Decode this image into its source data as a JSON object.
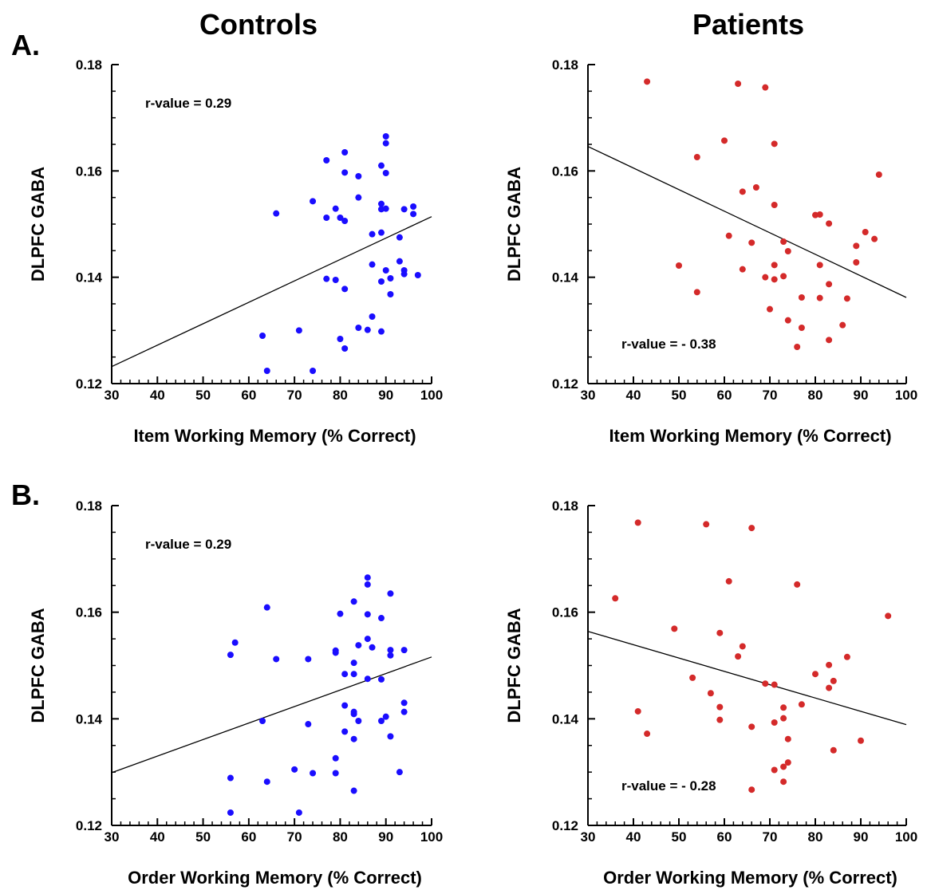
{
  "column_titles": [
    "Controls",
    "Patients"
  ],
  "panel_labels": [
    "A.",
    "B."
  ],
  "colors": {
    "controls": "#1a0dff",
    "patients": "#d42a2a",
    "fit_line": "#000000"
  },
  "chart_data": [
    {
      "type": "scatter",
      "group": "Controls",
      "panel": "A.",
      "xlabel": "Item Working Memory (% Correct)",
      "ylabel": "DLPFC GABA",
      "xlim": [
        30,
        100
      ],
      "ylim": [
        0.12,
        0.18
      ],
      "xticks": [
        30,
        40,
        50,
        60,
        70,
        80,
        90,
        100
      ],
      "yticks": [
        0.12,
        0.14,
        0.16,
        0.18
      ],
      "ytick_labels": [
        "0.12",
        "0.14",
        "0.16",
        "0.18"
      ],
      "annotation": "r-value = 0.29",
      "annotation_pos": "top-left",
      "fit_line": [
        [
          30,
          0.1232
        ],
        [
          100,
          0.1514
        ]
      ],
      "points": [
        [
          63,
          0.129
        ],
        [
          64,
          0.1224
        ],
        [
          66,
          0.152
        ],
        [
          71,
          0.13
        ],
        [
          74,
          0.1224
        ],
        [
          74,
          0.1543
        ],
        [
          77,
          0.162
        ],
        [
          77,
          0.1512
        ],
        [
          77,
          0.1397
        ],
        [
          79,
          0.1529
        ],
        [
          79,
          0.1395
        ],
        [
          80,
          0.1512
        ],
        [
          80,
          0.1284
        ],
        [
          81,
          0.1635
        ],
        [
          81,
          0.1597
        ],
        [
          81,
          0.1506
        ],
        [
          81,
          0.1378
        ],
        [
          81,
          0.1266
        ],
        [
          84,
          0.159
        ],
        [
          84,
          0.155
        ],
        [
          84,
          0.1305
        ],
        [
          86,
          0.1301
        ],
        [
          87,
          0.1481
        ],
        [
          87,
          0.1424
        ],
        [
          87,
          0.1326
        ],
        [
          89,
          0.161
        ],
        [
          89,
          0.1538
        ],
        [
          89,
          0.1528
        ],
        [
          89,
          0.1484
        ],
        [
          89,
          0.1392
        ],
        [
          89,
          0.1298
        ],
        [
          90,
          0.1665
        ],
        [
          90,
          0.1652
        ],
        [
          90,
          0.1596
        ],
        [
          90,
          0.1529
        ],
        [
          90,
          0.1413
        ],
        [
          91,
          0.1398
        ],
        [
          91,
          0.1368
        ],
        [
          93,
          0.1475
        ],
        [
          93,
          0.143
        ],
        [
          94,
          0.1528
        ],
        [
          94,
          0.1413
        ],
        [
          94,
          0.1406
        ],
        [
          96,
          0.1533
        ],
        [
          96,
          0.1519
        ],
        [
          97,
          0.1404
        ]
      ]
    },
    {
      "type": "scatter",
      "group": "Patients",
      "panel": "A.",
      "xlabel": "Item Working Memory (% Correct)",
      "ylabel": "DLPFC GABA",
      "xlim": [
        30,
        100
      ],
      "ylim": [
        0.12,
        0.18
      ],
      "xticks": [
        30,
        40,
        50,
        60,
        70,
        80,
        90,
        100
      ],
      "yticks": [
        0.12,
        0.14,
        0.16,
        0.18
      ],
      "ytick_labels": [
        "0.12",
        "0.14",
        "0.16",
        "0.18"
      ],
      "annotation": "r-value = - 0.38",
      "annotation_pos": "bottom-left",
      "fit_line": [
        [
          30,
          0.1646
        ],
        [
          100,
          0.1362
        ]
      ],
      "points": [
        [
          43,
          0.1768
        ],
        [
          50,
          0.1422
        ],
        [
          54,
          0.1626
        ],
        [
          54,
          0.1372
        ],
        [
          60,
          0.1657
        ],
        [
          61,
          0.1478
        ],
        [
          63,
          0.1764
        ],
        [
          64,
          0.1561
        ],
        [
          64,
          0.1415
        ],
        [
          66,
          0.1465
        ],
        [
          67,
          0.1569
        ],
        [
          69,
          0.1757
        ],
        [
          69,
          0.14
        ],
        [
          70,
          0.134
        ],
        [
          71,
          0.1651
        ],
        [
          71,
          0.1536
        ],
        [
          71,
          0.1423
        ],
        [
          71,
          0.1396
        ],
        [
          73,
          0.1467
        ],
        [
          73,
          0.1402
        ],
        [
          74,
          0.1449
        ],
        [
          74,
          0.1319
        ],
        [
          76,
          0.1269
        ],
        [
          77,
          0.1362
        ],
        [
          77,
          0.1305
        ],
        [
          80,
          0.1517
        ],
        [
          81,
          0.1518
        ],
        [
          81,
          0.1423
        ],
        [
          81,
          0.1361
        ],
        [
          83,
          0.1501
        ],
        [
          83,
          0.1387
        ],
        [
          83,
          0.1282
        ],
        [
          86,
          0.131
        ],
        [
          87,
          0.136
        ],
        [
          89,
          0.1459
        ],
        [
          89,
          0.1428
        ],
        [
          91,
          0.1485
        ],
        [
          93,
          0.1472
        ],
        [
          94,
          0.1593
        ]
      ]
    },
    {
      "type": "scatter",
      "group": "Controls",
      "panel": "B.",
      "xlabel": "Order Working Memory (% Correct)",
      "ylabel": "DLPFC GABA",
      "xlim": [
        30,
        100
      ],
      "ylim": [
        0.12,
        0.18
      ],
      "xticks": [
        30,
        40,
        50,
        60,
        70,
        80,
        90,
        100
      ],
      "yticks": [
        0.12,
        0.14,
        0.16,
        0.18
      ],
      "ytick_labels": [
        "0.12",
        "0.14",
        "0.16",
        "0.18"
      ],
      "annotation": "r-value = 0.29",
      "annotation_pos": "top-left",
      "fit_line": [
        [
          30,
          0.1299
        ],
        [
          100,
          0.1516
        ]
      ],
      "points": [
        [
          56,
          0.152
        ],
        [
          56,
          0.1289
        ],
        [
          56,
          0.1224
        ],
        [
          57,
          0.1543
        ],
        [
          63,
          0.1396
        ],
        [
          64,
          0.1609
        ],
        [
          64,
          0.1282
        ],
        [
          66,
          0.1512
        ],
        [
          70,
          0.1305
        ],
        [
          71,
          0.1224
        ],
        [
          73,
          0.1512
        ],
        [
          73,
          0.139
        ],
        [
          74,
          0.1298
        ],
        [
          79,
          0.1528
        ],
        [
          79,
          0.1524
        ],
        [
          79,
          0.1326
        ],
        [
          79,
          0.1298
        ],
        [
          80,
          0.1597
        ],
        [
          81,
          0.1484
        ],
        [
          81,
          0.1425
        ],
        [
          81,
          0.1376
        ],
        [
          83,
          0.162
        ],
        [
          83,
          0.1505
        ],
        [
          83,
          0.1484
        ],
        [
          83,
          0.1413
        ],
        [
          83,
          0.1409
        ],
        [
          83,
          0.1362
        ],
        [
          83,
          0.1265
        ],
        [
          84,
          0.1538
        ],
        [
          84,
          0.1396
        ],
        [
          86,
          0.1665
        ],
        [
          86,
          0.1652
        ],
        [
          86,
          0.1596
        ],
        [
          86,
          0.155
        ],
        [
          86,
          0.1475
        ],
        [
          87,
          0.1534
        ],
        [
          89,
          0.1589
        ],
        [
          89,
          0.1474
        ],
        [
          89,
          0.1396
        ],
        [
          90,
          0.1404
        ],
        [
          91,
          0.1635
        ],
        [
          91,
          0.1529
        ],
        [
          91,
          0.1519
        ],
        [
          91,
          0.1367
        ],
        [
          93,
          0.13
        ],
        [
          94,
          0.1529
        ],
        [
          94,
          0.143
        ],
        [
          94,
          0.1413
        ]
      ]
    },
    {
      "type": "scatter",
      "group": "Patients",
      "panel": "B.",
      "xlabel": "Order Working Memory (% Correct)",
      "ylabel": "DLPFC GABA",
      "xlim": [
        30,
        100
      ],
      "ylim": [
        0.12,
        0.18
      ],
      "xticks": [
        30,
        40,
        50,
        60,
        70,
        80,
        90,
        100
      ],
      "yticks": [
        0.12,
        0.14,
        0.16,
        0.18
      ],
      "ytick_labels": [
        "0.12",
        "0.14",
        "0.16",
        "0.18"
      ],
      "annotation": "r-value = - 0.28",
      "annotation_pos": "bottom-left",
      "fit_line": [
        [
          30,
          0.1564
        ],
        [
          100,
          0.1389
        ]
      ],
      "points": [
        [
          36,
          0.1626
        ],
        [
          41,
          0.1768
        ],
        [
          41,
          0.1414
        ],
        [
          43,
          0.1372
        ],
        [
          49,
          0.1569
        ],
        [
          53,
          0.1477
        ],
        [
          56,
          0.1765
        ],
        [
          57,
          0.1448
        ],
        [
          59,
          0.1561
        ],
        [
          59,
          0.1422
        ],
        [
          59,
          0.1398
        ],
        [
          61,
          0.1658
        ],
        [
          63,
          0.1517
        ],
        [
          64,
          0.1536
        ],
        [
          66,
          0.1758
        ],
        [
          66,
          0.1385
        ],
        [
          66,
          0.1267
        ],
        [
          69,
          0.1466
        ],
        [
          71,
          0.1464
        ],
        [
          71,
          0.1393
        ],
        [
          71,
          0.1304
        ],
        [
          73,
          0.1421
        ],
        [
          73,
          0.1401
        ],
        [
          73,
          0.131
        ],
        [
          73,
          0.1282
        ],
        [
          74,
          0.1362
        ],
        [
          74,
          0.1318
        ],
        [
          76,
          0.1652
        ],
        [
          77,
          0.1427
        ],
        [
          80,
          0.1484
        ],
        [
          83,
          0.1501
        ],
        [
          83,
          0.1458
        ],
        [
          84,
          0.1471
        ],
        [
          84,
          0.1341
        ],
        [
          87,
          0.1516
        ],
        [
          90,
          0.1359
        ],
        [
          96,
          0.1593
        ]
      ]
    }
  ]
}
